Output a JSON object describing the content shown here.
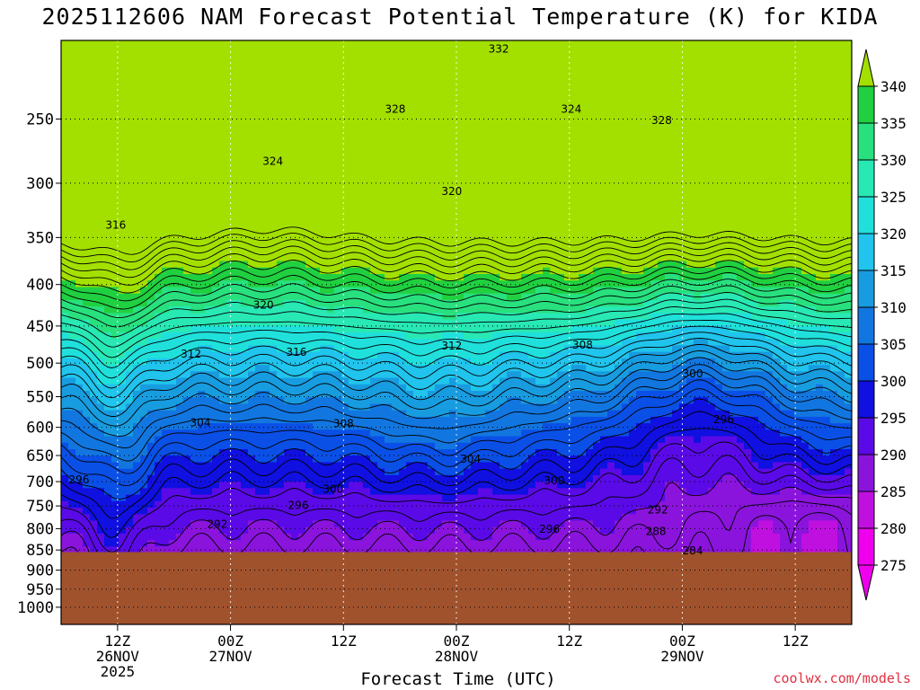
{
  "title": "2025112606 NAM Forecast Potential Temperature (K) for KIDA",
  "credit": "coolwx.com/models",
  "colors": {
    "ground": "#a0522d",
    "credit": "#e03040"
  },
  "chart_data": {
    "type": "heatmap",
    "title": "2025112606 NAM Forecast Potential Temperature (K) for KIDA",
    "xlabel": "Forecast Time (UTC)",
    "ylabel": "",
    "y_axis": {
      "scale": "log",
      "inverted": true,
      "ticks": [
        250,
        300,
        350,
        400,
        450,
        500,
        550,
        600,
        650,
        700,
        750,
        800,
        850,
        900,
        950,
        1000
      ],
      "range": [
        200,
        1050
      ]
    },
    "x_axis": {
      "range_hours": [
        0,
        84
      ],
      "ticks": [
        {
          "hour": 6,
          "lines": [
            "12Z",
            "26NOV",
            "2025"
          ]
        },
        {
          "hour": 18,
          "lines": [
            "00Z",
            "27NOV"
          ]
        },
        {
          "hour": 30,
          "lines": [
            "12Z"
          ]
        },
        {
          "hour": 42,
          "lines": [
            "00Z",
            "28NOV"
          ]
        },
        {
          "hour": 54,
          "lines": [
            "12Z"
          ]
        },
        {
          "hour": 66,
          "lines": [
            "00Z",
            "29NOV"
          ]
        },
        {
          "hour": 78,
          "lines": [
            "12Z"
          ]
        }
      ]
    },
    "colorbar": {
      "labels": [
        340,
        335,
        330,
        325,
        320,
        315,
        310,
        305,
        300,
        295,
        290,
        285,
        280,
        275
      ],
      "colors": [
        "#a3e000",
        "#20d040",
        "#28e07e",
        "#28e8b4",
        "#20e0dc",
        "#20c4ec",
        "#189ce0",
        "#1276e0",
        "#0a50e6",
        "#1010e0",
        "#5a0ae6",
        "#8a14dc",
        "#c010e0",
        "#ee00ee"
      ]
    },
    "terrain": {
      "surface_pressure_hpa": 855
    },
    "contour_labels": [
      {
        "text": "332",
        "hour": 46.5,
        "p": 205
      },
      {
        "text": "328",
        "hour": 35.5,
        "p": 243
      },
      {
        "text": "324",
        "hour": 22.5,
        "p": 282
      },
      {
        "text": "324",
        "hour": 54.2,
        "p": 243
      },
      {
        "text": "328",
        "hour": 63.8,
        "p": 251
      },
      {
        "text": "320",
        "hour": 41.5,
        "p": 307
      },
      {
        "text": "316",
        "hour": 5.8,
        "p": 338
      },
      {
        "text": "320",
        "hour": 21.5,
        "p": 424
      },
      {
        "text": "312",
        "hour": 13.8,
        "p": 487
      },
      {
        "text": "316",
        "hour": 25.0,
        "p": 485
      },
      {
        "text": "312",
        "hour": 41.5,
        "p": 476
      },
      {
        "text": "308",
        "hour": 55.4,
        "p": 475
      },
      {
        "text": "300",
        "hour": 67.1,
        "p": 515
      },
      {
        "text": "304",
        "hour": 14.8,
        "p": 592
      },
      {
        "text": "308",
        "hour": 30.0,
        "p": 594
      },
      {
        "text": "296",
        "hour": 70.4,
        "p": 587
      },
      {
        "text": "304",
        "hour": 43.5,
        "p": 657
      },
      {
        "text": "296",
        "hour": 1.9,
        "p": 696
      },
      {
        "text": "300",
        "hour": 28.9,
        "p": 715
      },
      {
        "text": "300",
        "hour": 52.4,
        "p": 698
      },
      {
        "text": "296",
        "hour": 25.2,
        "p": 749
      },
      {
        "text": "292",
        "hour": 16.6,
        "p": 790
      },
      {
        "text": "292",
        "hour": 63.4,
        "p": 758
      },
      {
        "text": "296",
        "hour": 51.9,
        "p": 801
      },
      {
        "text": "288",
        "hour": 63.2,
        "p": 806
      },
      {
        "text": "284",
        "hour": 67.1,
        "p": 852
      }
    ]
  }
}
